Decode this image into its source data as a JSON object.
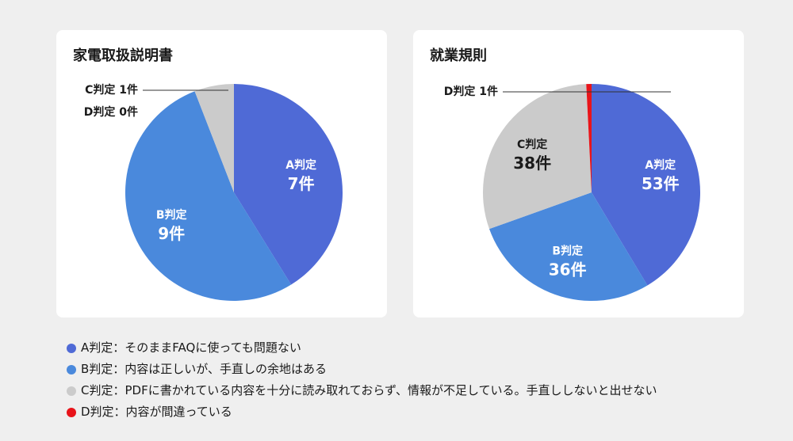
{
  "colors": {
    "A": "#4f6ad6",
    "B": "#4a89dc",
    "C": "#cbcbcb",
    "D": "#e8141a"
  },
  "chart_data": [
    {
      "type": "pie",
      "title": "家電取扱説明書",
      "slices": [
        {
          "key": "A",
          "label": "A判定",
          "value": 7,
          "display": "7件"
        },
        {
          "key": "B",
          "label": "B判定",
          "value": 9,
          "display": "9件"
        },
        {
          "key": "C",
          "label": "C判定",
          "value": 1,
          "display": "1件"
        },
        {
          "key": "D",
          "label": "D判定",
          "value": 0,
          "display": "0件"
        }
      ]
    },
    {
      "type": "pie",
      "title": "就業規則",
      "slices": [
        {
          "key": "A",
          "label": "A判定",
          "value": 53,
          "display": "53件"
        },
        {
          "key": "B",
          "label": "B判定",
          "value": 36,
          "display": "36件"
        },
        {
          "key": "C",
          "label": "C判定",
          "value": 38,
          "display": "38件"
        },
        {
          "key": "D",
          "label": "D判定",
          "value": 1,
          "display": "1件"
        }
      ]
    }
  ],
  "legend": [
    {
      "key": "A",
      "text": "A判定：そのままFAQに使っても問題ない"
    },
    {
      "key": "B",
      "text": "B判定：内容は正しいが、手直しの余地はある"
    },
    {
      "key": "C",
      "text": "C判定：PDFに書かれている内容を十分に読み取れておらず、情報が不足している。手直ししないと出せない"
    },
    {
      "key": "D",
      "text": "D判定：内容が間違っている"
    }
  ]
}
